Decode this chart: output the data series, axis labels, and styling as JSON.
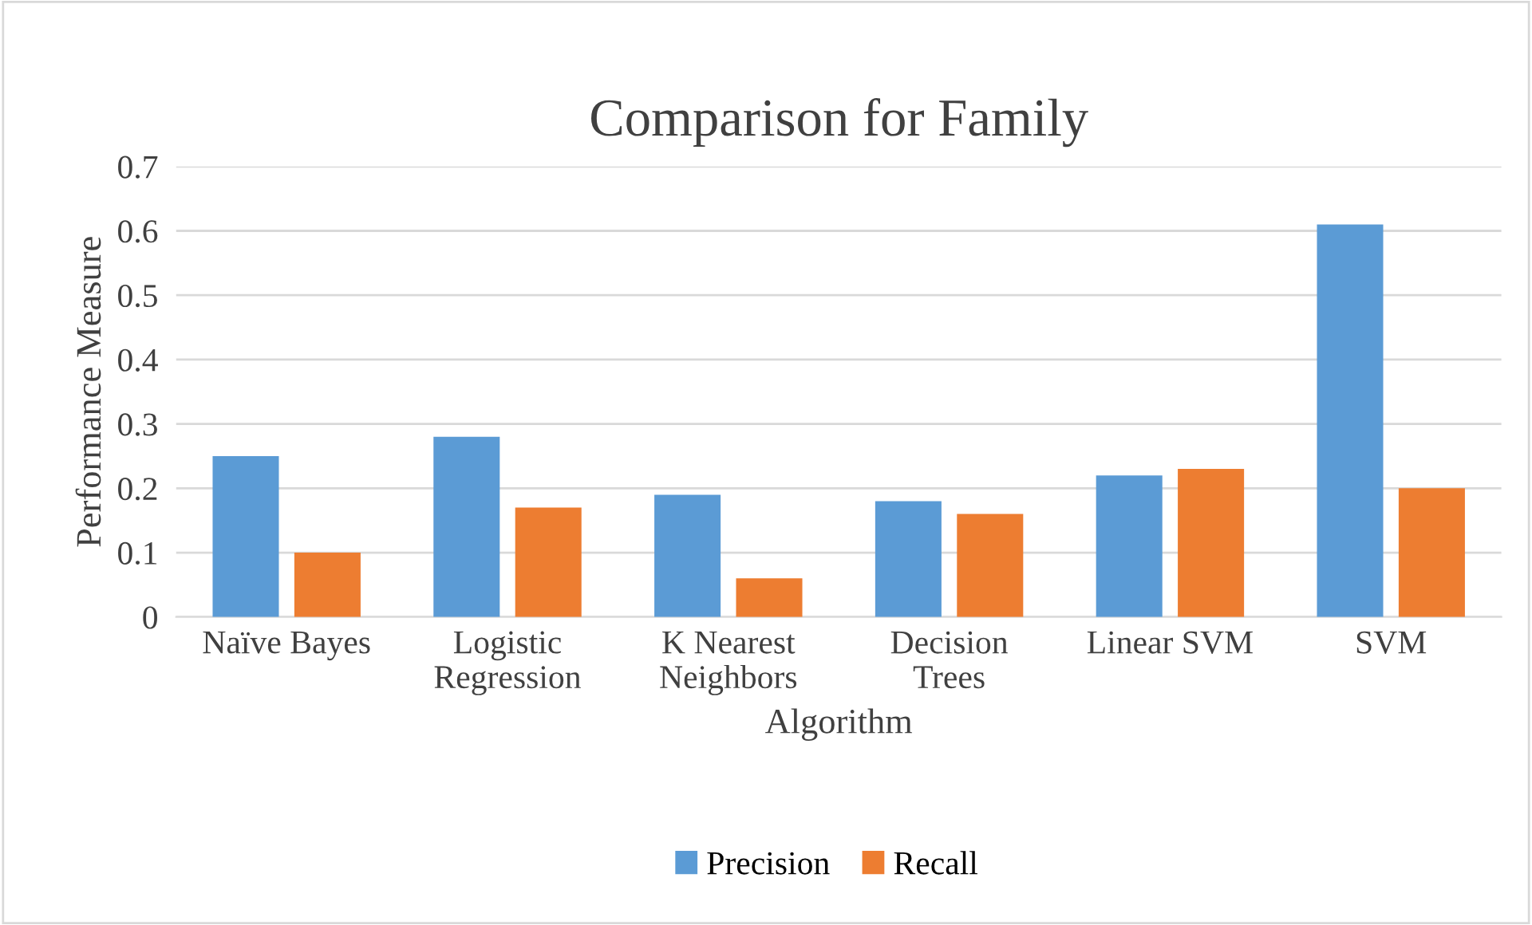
{
  "chart_data": {
    "type": "bar",
    "title": "Comparison for Family",
    "xlabel": "Algorithm",
    "ylabel": "Performance Measure",
    "categories": [
      "Naïve Bayes",
      "Logistic\nRegression",
      "K Nearest\nNeighbors",
      "Decision\nTrees",
      "Linear SVM",
      "SVM"
    ],
    "series": [
      {
        "name": "Precision",
        "color": "#5b9bd5",
        "values": [
          0.25,
          0.28,
          0.19,
          0.18,
          0.22,
          0.61
        ]
      },
      {
        "name": "Recall",
        "color": "#ed7d31",
        "values": [
          0.1,
          0.17,
          0.06,
          0.16,
          0.23,
          0.2
        ]
      }
    ],
    "ylim": [
      0,
      0.7
    ],
    "yticks": [
      0,
      0.1,
      0.2,
      0.3,
      0.4,
      0.5,
      0.6,
      0.7
    ],
    "grid": "y",
    "legend": "bottom"
  }
}
